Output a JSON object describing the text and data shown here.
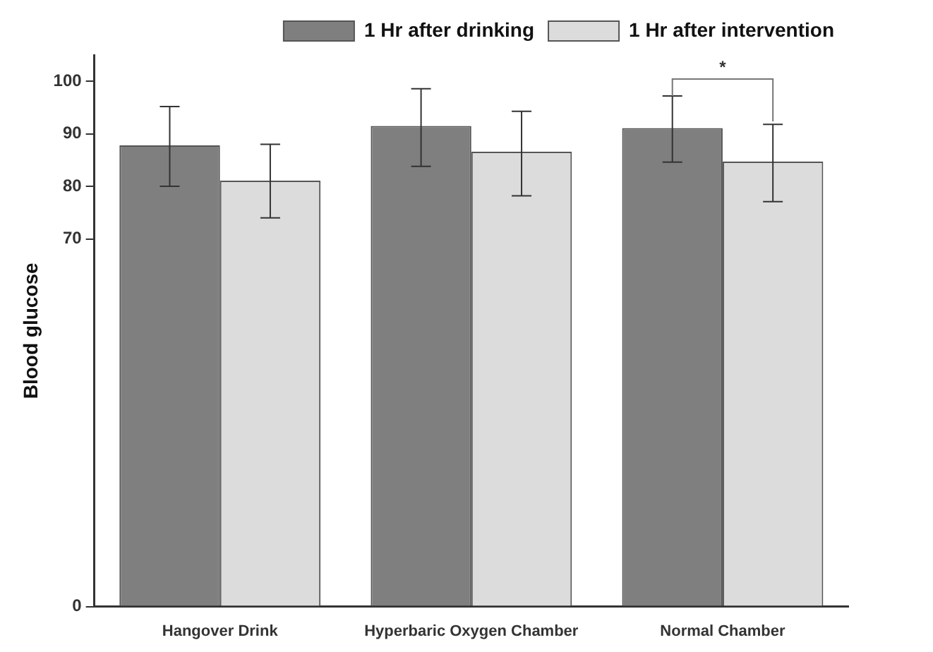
{
  "chart_data": {
    "type": "bar",
    "ylabel": "Blood glucose",
    "categories": [
      "Hangover Drink",
      "Hyperbaric Oxygen Chamber",
      "Normal Chamber"
    ],
    "series": [
      {
        "name": "1 Hr after drinking",
        "color": "#7f7f7f",
        "values": [
          87.8,
          91.5,
          91.1
        ],
        "errors": [
          [
            80.0,
            95.2
          ],
          [
            83.8,
            98.6
          ],
          [
            84.6,
            97.2
          ]
        ]
      },
      {
        "name": "1 Hr after intervention",
        "color": "#dcdcdc",
        "values": [
          81.1,
          86.6,
          84.7
        ],
        "errors": [
          [
            74.0,
            88.0
          ],
          [
            78.2,
            94.3
          ],
          [
            77.1,
            91.8
          ]
        ]
      }
    ],
    "ylim": [
      0,
      105
    ],
    "yticks": [
      0,
      70,
      80,
      90,
      100
    ],
    "grid": false,
    "legend": "top right",
    "annotations": [
      "*"
    ]
  }
}
